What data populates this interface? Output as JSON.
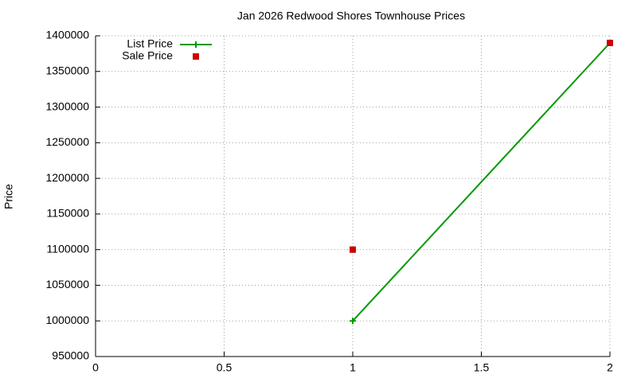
{
  "chart_data": {
    "type": "line",
    "title": "Jan 2026 Redwood Shores Townhouse Prices",
    "ylabel": "Price",
    "x": [
      1,
      2
    ],
    "series": [
      {
        "name": "List Price",
        "color": "#009900",
        "style": "linespoints",
        "values": [
          1000000,
          1390000
        ]
      },
      {
        "name": "Sale Price",
        "color": "#cc0000",
        "style": "points",
        "values": [
          1100000,
          1390000
        ]
      }
    ],
    "xlim": [
      0,
      2
    ],
    "xticks": [
      0,
      0.5,
      1,
      1.5,
      2
    ],
    "ylim": [
      950000,
      1400000
    ],
    "yticks": [
      950000,
      1000000,
      1050000,
      1100000,
      1150000,
      1200000,
      1250000,
      1300000,
      1350000,
      1400000
    ],
    "grid": true,
    "legend": "top-left"
  }
}
